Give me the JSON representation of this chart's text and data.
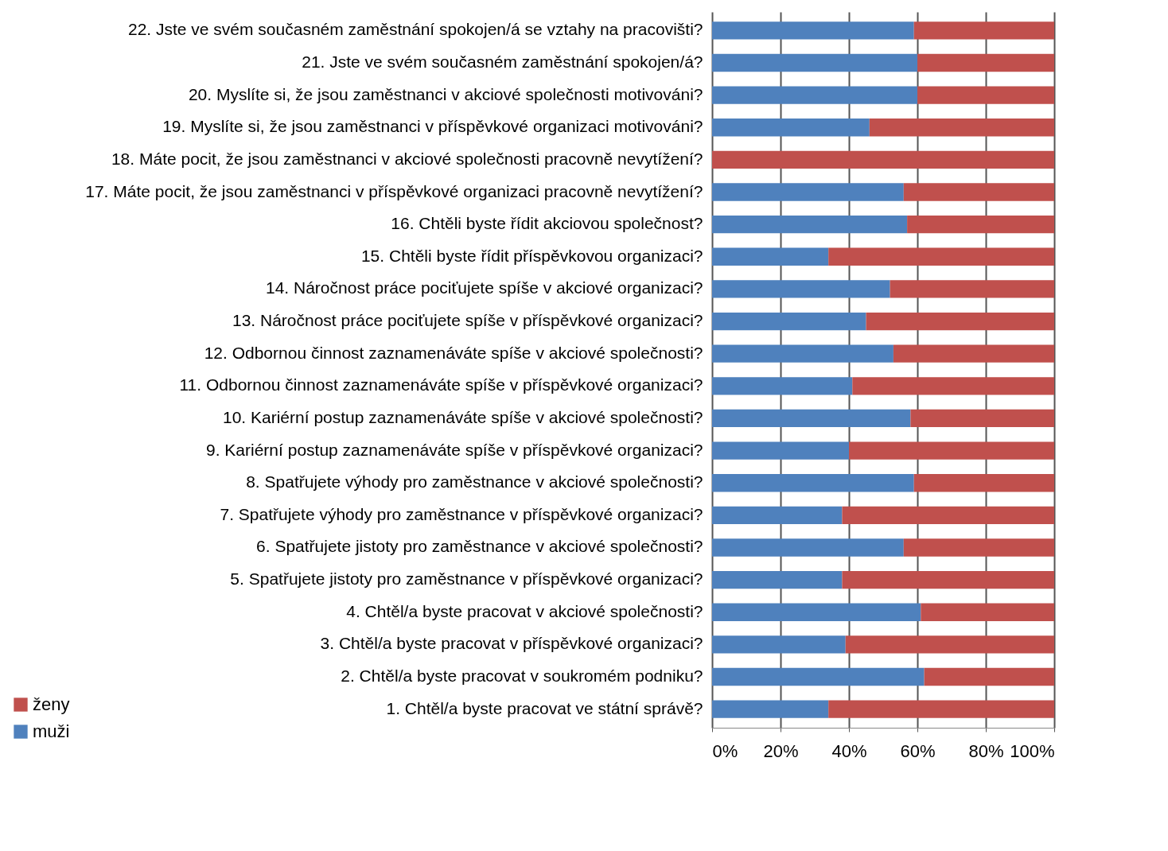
{
  "chart_data": {
    "type": "bar",
    "orientation": "horizontal",
    "stacked": true,
    "categories": [
      "22. Jste ve svém současném zaměstnání spokojen/á se vztahy na pracovišti?",
      "21. Jste ve svém současném zaměstnání spokojen/á?",
      "20. Myslíte si, že jsou zaměstnanci v akciové společnosti motivováni?",
      "19. Myslíte si, že jsou zaměstnanci v příspěvkové organizaci motivováni?",
      "18. Máte pocit, že jsou zaměstnanci v akciové společnosti pracovně nevytížení?",
      "17. Máte pocit, že jsou zaměstnanci v příspěvkové organizaci pracovně nevytížení?",
      "16. Chtěli byste řídit akciovou společnost?",
      "15. Chtěli byste řídit příspěvkovou organizaci?",
      "14. Náročnost práce pociťujete spíše v akciové organizaci?",
      "13. Náročnost práce pociťujete spíše v příspěvkové organizaci?",
      "12. Odbornou činnost zaznamenáváte spíše v akciové společnosti?",
      "11. Odbornou činnost zaznamenáváte spíše v příspěvkové organizaci?",
      "10. Kariérní postup zaznamenáváte spíše v akciové společnosti?",
      "9. Kariérní postup zaznamenáváte spíše v příspěvkové organizaci?",
      "8. Spatřujete výhody pro zaměstnance v akciové společnosti?",
      "7. Spatřujete výhody pro zaměstnance v příspěvkové organizaci?",
      "6. Spatřujete jistoty pro zaměstnance v akciové společnosti?",
      "5. Spatřujete jistoty pro zaměstnance v příspěvkové organizaci?",
      "4. Chtěl/a byste pracovat v akciové společnosti?",
      "3. Chtěl/a byste pracovat v příspěvkové organizaci?",
      "2. Chtěl/a byste pracovat v soukromém podniku?",
      "1. Chtěl/a byste pracovat ve státní správě?"
    ],
    "series": [
      {
        "name": "muži",
        "color": "#4f81bd",
        "values": [
          59,
          60,
          60,
          46,
          0,
          56,
          57,
          34,
          52,
          45,
          53,
          41,
          58,
          40,
          59,
          38,
          56,
          38,
          61,
          39,
          62,
          34
        ]
      },
      {
        "name": "ženy",
        "color": "#c0504d",
        "values": [
          41,
          40,
          40,
          54,
          100,
          44,
          43,
          66,
          48,
          55,
          47,
          59,
          42,
          60,
          41,
          62,
          44,
          62,
          39,
          61,
          38,
          66
        ]
      }
    ],
    "xlim": [
      0,
      100
    ],
    "xticks": [
      {
        "value": 0,
        "label": "0%"
      },
      {
        "value": 20,
        "label": "20%"
      },
      {
        "value": 40,
        "label": "40%"
      },
      {
        "value": 60,
        "label": "60%"
      },
      {
        "value": 80,
        "label": "80%"
      },
      {
        "value": 100,
        "label": "100%"
      }
    ],
    "grid": "x",
    "legend": "bottom left"
  }
}
